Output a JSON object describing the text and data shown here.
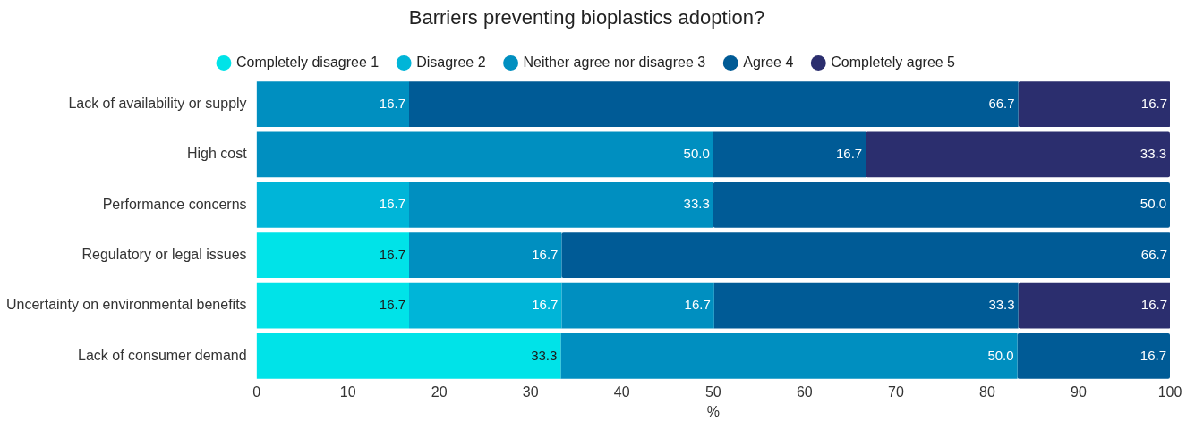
{
  "chart_data": {
    "type": "bar",
    "orientation": "horizontal",
    "stacked": true,
    "title": "Barriers preventing bioplastics adoption?",
    "xlabel": "%",
    "categories": [
      "Lack of availability or supply",
      "High cost",
      "Performance concerns",
      "Regulatory or legal issues",
      "Uncertainty on environmental benefits",
      "Lack of consumer demand"
    ],
    "series": [
      {
        "name": "Completely disagree 1",
        "color": "#00e3e8",
        "values": [
          null,
          null,
          null,
          16.7,
          16.7,
          33.3
        ],
        "value_labels": [
          null,
          null,
          null,
          "16.7",
          "16.7",
          "33.3"
        ]
      },
      {
        "name": "Disagree 2",
        "color": "#00b5d8",
        "values": [
          null,
          null,
          16.7,
          null,
          16.7,
          null
        ],
        "value_labels": [
          null,
          null,
          "16.7",
          null,
          "16.7",
          null
        ]
      },
      {
        "name": "Neither agree nor disagree 3",
        "color": "#008fc0",
        "values": [
          16.7,
          50.0,
          33.3,
          16.7,
          16.7,
          50.0
        ],
        "value_labels": [
          "16.7",
          "50.0",
          "33.3",
          "16.7",
          "16.7",
          "50.0"
        ]
      },
      {
        "name": "Agree 4",
        "color": "#005b96",
        "values": [
          66.7,
          16.7,
          50.0,
          66.7,
          33.3,
          16.7
        ],
        "value_labels": [
          "66.7",
          "16.7",
          "50.0",
          "66.7",
          "33.3",
          "16.7"
        ]
      },
      {
        "name": "Completely agree 5",
        "color": "#2b2e6e",
        "values": [
          16.7,
          33.3,
          null,
          null,
          16.7,
          null
        ],
        "value_labels": [
          "16.7",
          "33.3",
          null,
          null,
          "16.7",
          null
        ]
      }
    ],
    "xlim": [
      0,
      100
    ],
    "xticks": [
      0,
      10,
      20,
      30,
      40,
      50,
      60,
      70,
      80,
      90,
      100
    ],
    "grid": false,
    "legend": "top",
    "marker": "circle"
  }
}
